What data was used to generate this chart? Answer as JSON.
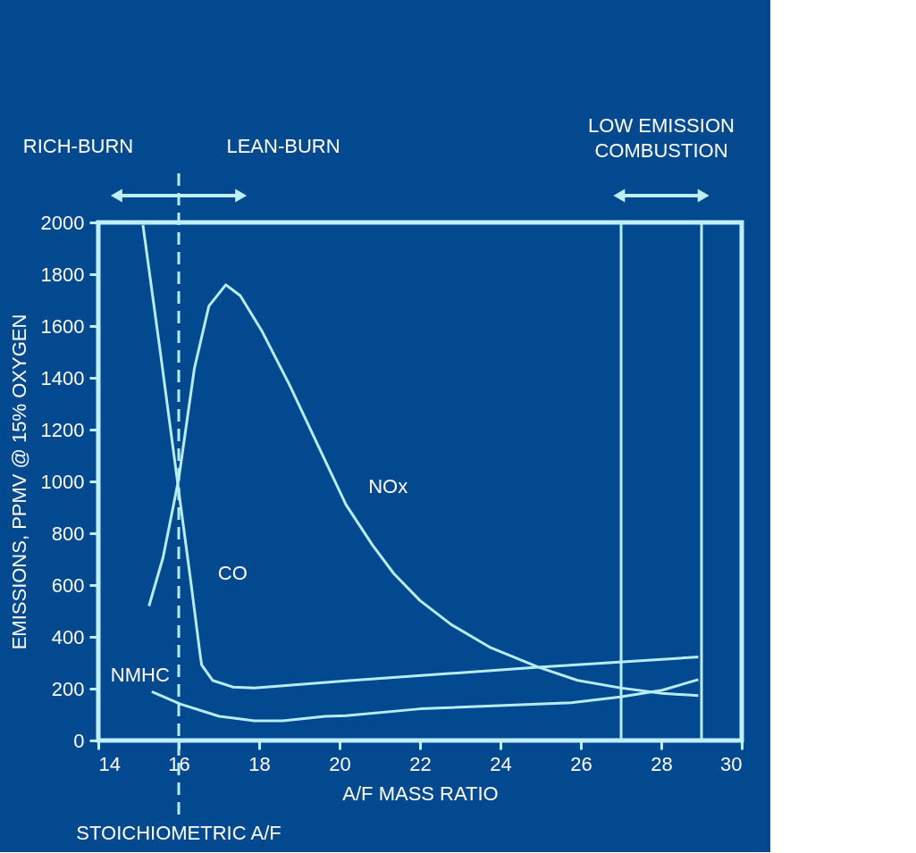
{
  "chart_data": {
    "type": "line",
    "xlabel": "A/F MASS RATIO",
    "ylabel": "EMISSIONS, PPMV @ 15% OXYGEN",
    "xlim": [
      14,
      30
    ],
    "xticks": [
      14,
      16,
      18,
      20,
      22,
      24,
      26,
      28,
      30
    ],
    "ylim": [
      0,
      2000
    ],
    "yticks": [
      0,
      200,
      400,
      600,
      800,
      1000,
      1200,
      1400,
      1600,
      1800,
      2000
    ],
    "grid": false,
    "legend": false,
    "marker": "none",
    "line_style": "solid",
    "series": [
      {
        "name": "NOx",
        "color": "#b7ecfb",
        "x": [
          15.26,
          15.61,
          16.0,
          16.39,
          16.75,
          17.17,
          17.53,
          18.06,
          18.76,
          19.46,
          20.16,
          20.82,
          21.35,
          22.0,
          22.78,
          23.76,
          24.94,
          25.92,
          26.98,
          28.02,
          28.92
        ],
        "values": [
          519,
          706,
          1010,
          1437,
          1677,
          1759,
          1717,
          1583,
          1371,
          1140,
          910,
          754,
          644,
          540,
          447,
          358,
          283,
          232,
          203,
          182,
          173
        ]
      },
      {
        "name": "CO",
        "color": "#b7ecfb",
        "x": [
          15.11,
          15.55,
          15.96,
          16.3,
          16.53,
          16.57,
          16.84,
          17.35,
          17.88,
          20.16,
          24.94,
          28.92
        ],
        "values": [
          1990,
          1490,
          1010,
          614,
          334,
          292,
          232,
          206,
          203,
          230,
          283,
          322
        ]
      },
      {
        "name": "NMHC",
        "color": "#b7ecfb",
        "x": [
          15.33,
          16.05,
          17.01,
          17.88,
          18.59,
          19.64,
          20.16,
          22.0,
          25.76,
          26.98,
          28.02,
          28.92
        ],
        "values": [
          188,
          140,
          93,
          76,
          76,
          93,
          96,
          122,
          146,
          168,
          194,
          235
        ]
      }
    ],
    "ref_lines": [
      {
        "axis": "x",
        "value": 16,
        "label": "STOICHIOMETRIC A/F",
        "line_style": "dashed",
        "color": "#b7ecfb"
      },
      {
        "axis": "x",
        "value": 27,
        "color": "#b7ecfb"
      },
      {
        "axis": "x",
        "value": 29,
        "color": "#b7ecfb"
      }
    ],
    "annotations": [
      "RICH-BURN",
      "LEAN-BURN",
      "LOW EMISSION COMBUSTION"
    ]
  }
}
